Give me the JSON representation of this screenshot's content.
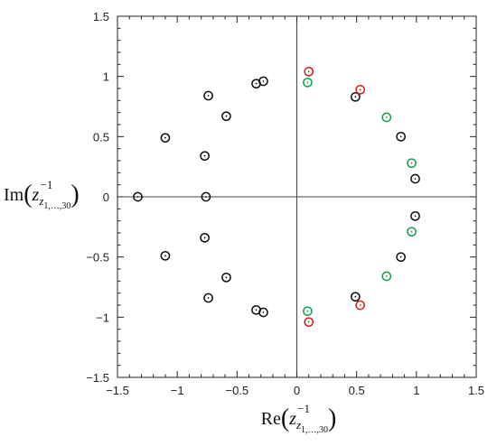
{
  "chart_data": {
    "type": "scatter",
    "title": "",
    "xlabel": "Re",
    "ylabel": "Im",
    "axis_label_arg": {
      "base": "z",
      "sub_base": "z",
      "sup": "−1",
      "sub_range": "1,…,30"
    },
    "xlim": [
      -1.5,
      1.5
    ],
    "ylim": [
      -1.5,
      1.5
    ],
    "x_ticks": [
      -1.5,
      -1,
      -0.5,
      0,
      0.5,
      1,
      1.5
    ],
    "y_ticks": [
      -1.5,
      -1,
      -0.5,
      0,
      0.5,
      1,
      1.5
    ],
    "x_tick_labels": [
      "−1.5",
      "−1",
      "−0.5",
      "0",
      "0.5",
      "1",
      "1.5"
    ],
    "y_tick_labels": [
      "−1.5",
      "−1",
      "−0.5",
      "0",
      "0.5",
      "1",
      "1.5"
    ],
    "grid": false,
    "reference_lines": {
      "x": 0,
      "y": 0
    },
    "colors": {
      "black": "#111111",
      "red": "#d42020",
      "green": "#12a050"
    },
    "series": [
      {
        "color": "black",
        "points": [
          [
            -1.33,
            0.0
          ],
          [
            -1.1,
            0.49
          ],
          [
            -1.1,
            -0.49
          ],
          [
            -0.76,
            0.0
          ],
          [
            -0.77,
            0.34
          ],
          [
            -0.77,
            -0.34
          ],
          [
            -0.74,
            0.84
          ],
          [
            -0.74,
            -0.84
          ],
          [
            -0.59,
            0.67
          ],
          [
            -0.59,
            -0.67
          ],
          [
            -0.34,
            0.94
          ],
          [
            -0.28,
            0.96
          ],
          [
            -0.34,
            -0.94
          ],
          [
            -0.28,
            -0.96
          ],
          [
            0.49,
            0.83
          ],
          [
            0.49,
            -0.83
          ],
          [
            0.87,
            0.5
          ],
          [
            0.87,
            -0.5
          ],
          [
            0.99,
            0.15
          ],
          [
            0.99,
            -0.16
          ]
        ]
      },
      {
        "color": "red",
        "points": [
          [
            0.1,
            1.04
          ],
          [
            0.53,
            0.89
          ],
          [
            0.1,
            -1.04
          ],
          [
            0.53,
            -0.9
          ]
        ]
      },
      {
        "color": "green",
        "points": [
          [
            0.09,
            0.95
          ],
          [
            0.75,
            0.66
          ],
          [
            0.96,
            0.28
          ],
          [
            0.09,
            -0.95
          ],
          [
            0.75,
            -0.66
          ],
          [
            0.96,
            -0.29
          ]
        ]
      }
    ]
  }
}
